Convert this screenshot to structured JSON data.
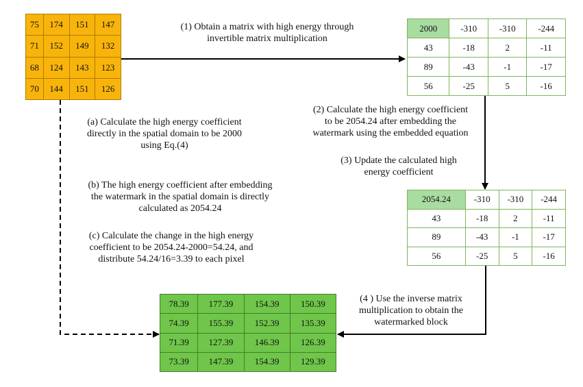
{
  "matrices": {
    "original": [
      [
        "75",
        "174",
        "151",
        "147"
      ],
      [
        "71",
        "152",
        "149",
        "132"
      ],
      [
        "68",
        "124",
        "143",
        "123"
      ],
      [
        "70",
        "144",
        "151",
        "126"
      ]
    ],
    "transformed": [
      [
        "2000",
        "-310",
        "-310",
        "-244"
      ],
      [
        "43",
        "-18",
        "2",
        "-11"
      ],
      [
        "89",
        "-43",
        "-1",
        "-17"
      ],
      [
        "56",
        "-25",
        "5",
        "-16"
      ]
    ],
    "updated": [
      [
        "2054.24",
        "-310",
        "-310",
        "-244"
      ],
      [
        "43",
        "-18",
        "2",
        "-11"
      ],
      [
        "89",
        "-43",
        "-1",
        "-17"
      ],
      [
        "56",
        "-25",
        "5",
        "-16"
      ]
    ],
    "result": [
      [
        "78.39",
        "177.39",
        "154.39",
        "150.39"
      ],
      [
        "74.39",
        "155.39",
        "152.39",
        "135.39"
      ],
      [
        "71.39",
        "127.39",
        "146.39",
        "126.39"
      ],
      [
        "73.39",
        "147.39",
        "154.39",
        "129.39"
      ]
    ]
  },
  "steps": {
    "step1": [
      "(1) Obtain a matrix with high energy through",
      "invertible matrix multiplication"
    ],
    "step2": [
      "(2) Calculate the high energy coefficient",
      "to be 2054.24 after embedding the",
      "watermark using the embedded equation"
    ],
    "step3": [
      "(3) Update the calculated high",
      "energy coefficient"
    ],
    "step4": [
      "(4 )  Use the inverse matrix",
      "multiplication to obtain the",
      "watermarked block"
    ]
  },
  "notes": {
    "a": [
      "(a) Calculate the high energy coefficient",
      "directly in the spatial domain to be 2000",
      "using Eq.(4)"
    ],
    "b": [
      "(b) The high energy coefficient after embedding",
      "the watermark in the spatial domain is directly",
      "calculated as 2054.24"
    ],
    "c": [
      "(c) Calculate the change in the high energy",
      "coefficient to be 2054.24-2000=54.24, and",
      "distribute 54.24/16=3.39 to each pixel"
    ]
  },
  "colors": {
    "original_fill": "#f8b40b",
    "highlight_fill": "#a9dca0",
    "result_fill": "#6fc64a",
    "grid_border": "#7fb35a"
  }
}
